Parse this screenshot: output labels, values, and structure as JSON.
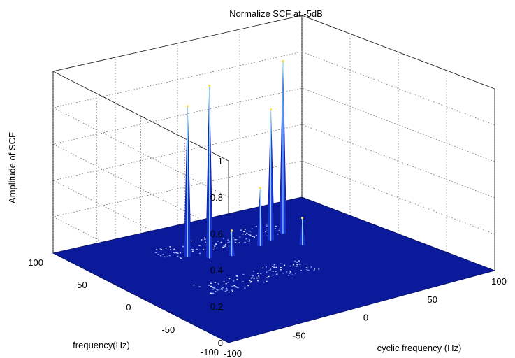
{
  "chart_data": {
    "type": "surface3d",
    "title": "Normalize SCF  at -5dB",
    "xlabel": "cyclic frequency (Hz)",
    "ylabel": "frequency(Hz)",
    "zlabel": "Amplitude of SCF",
    "xlim": [
      -100,
      100
    ],
    "ylim": [
      -100,
      100
    ],
    "zlim": [
      0,
      1
    ],
    "x_ticks": [
      "-100",
      "-50",
      "0",
      "50",
      "100"
    ],
    "y_ticks": [
      "-100",
      "-50",
      "0",
      "50",
      "100"
    ],
    "z_ticks": [
      "0",
      "0.2",
      "0.4",
      "0.6",
      "0.8",
      "1"
    ],
    "grid": true,
    "surface_color": "#0a1a9a",
    "peaks": [
      {
        "x": -32,
        "y": 45,
        "z": 0.83
      },
      {
        "x": -22,
        "y": 35,
        "z": 0.95
      },
      {
        "x": 30,
        "y": 40,
        "z": 0.72
      },
      {
        "x": 44,
        "y": 46,
        "z": 0.95
      },
      {
        "x": -8,
        "y": 30,
        "z": 0.14
      },
      {
        "x": 18,
        "y": 35,
        "z": 0.32
      },
      {
        "x": 40,
        "y": 20,
        "z": 0.15
      }
    ]
  }
}
